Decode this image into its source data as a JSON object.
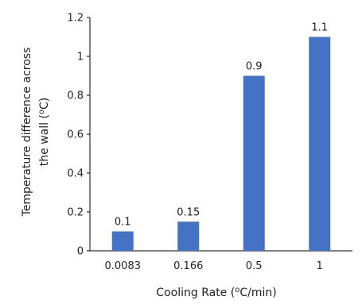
{
  "chart_data": {
    "type": "bar",
    "categories": [
      "0.0083",
      "0.166",
      "0.5",
      "1"
    ],
    "values": [
      0.1,
      0.15,
      0.9,
      1.1
    ],
    "data_labels": [
      "0.1",
      "0.15",
      "0.9",
      "1.1"
    ],
    "xlabel": {
      "text": "Cooling Rate (",
      "sup": "o",
      "tail": "C/min)"
    },
    "ylabel": {
      "line1": "Temperature difference across",
      "line2_text": "the wall (",
      "line2_sup": "o",
      "line2_tail": "C)"
    },
    "ylim": [
      0,
      1.2
    ],
    "yticks": [
      "0",
      "0.2",
      "0.4",
      "0.6",
      "0.8",
      "1",
      "1.2"
    ],
    "ytick_values": [
      0,
      0.2,
      0.4,
      0.6,
      0.8,
      1,
      1.2
    ],
    "grid": false,
    "legend": "none",
    "bar_color": "#4472C4"
  }
}
